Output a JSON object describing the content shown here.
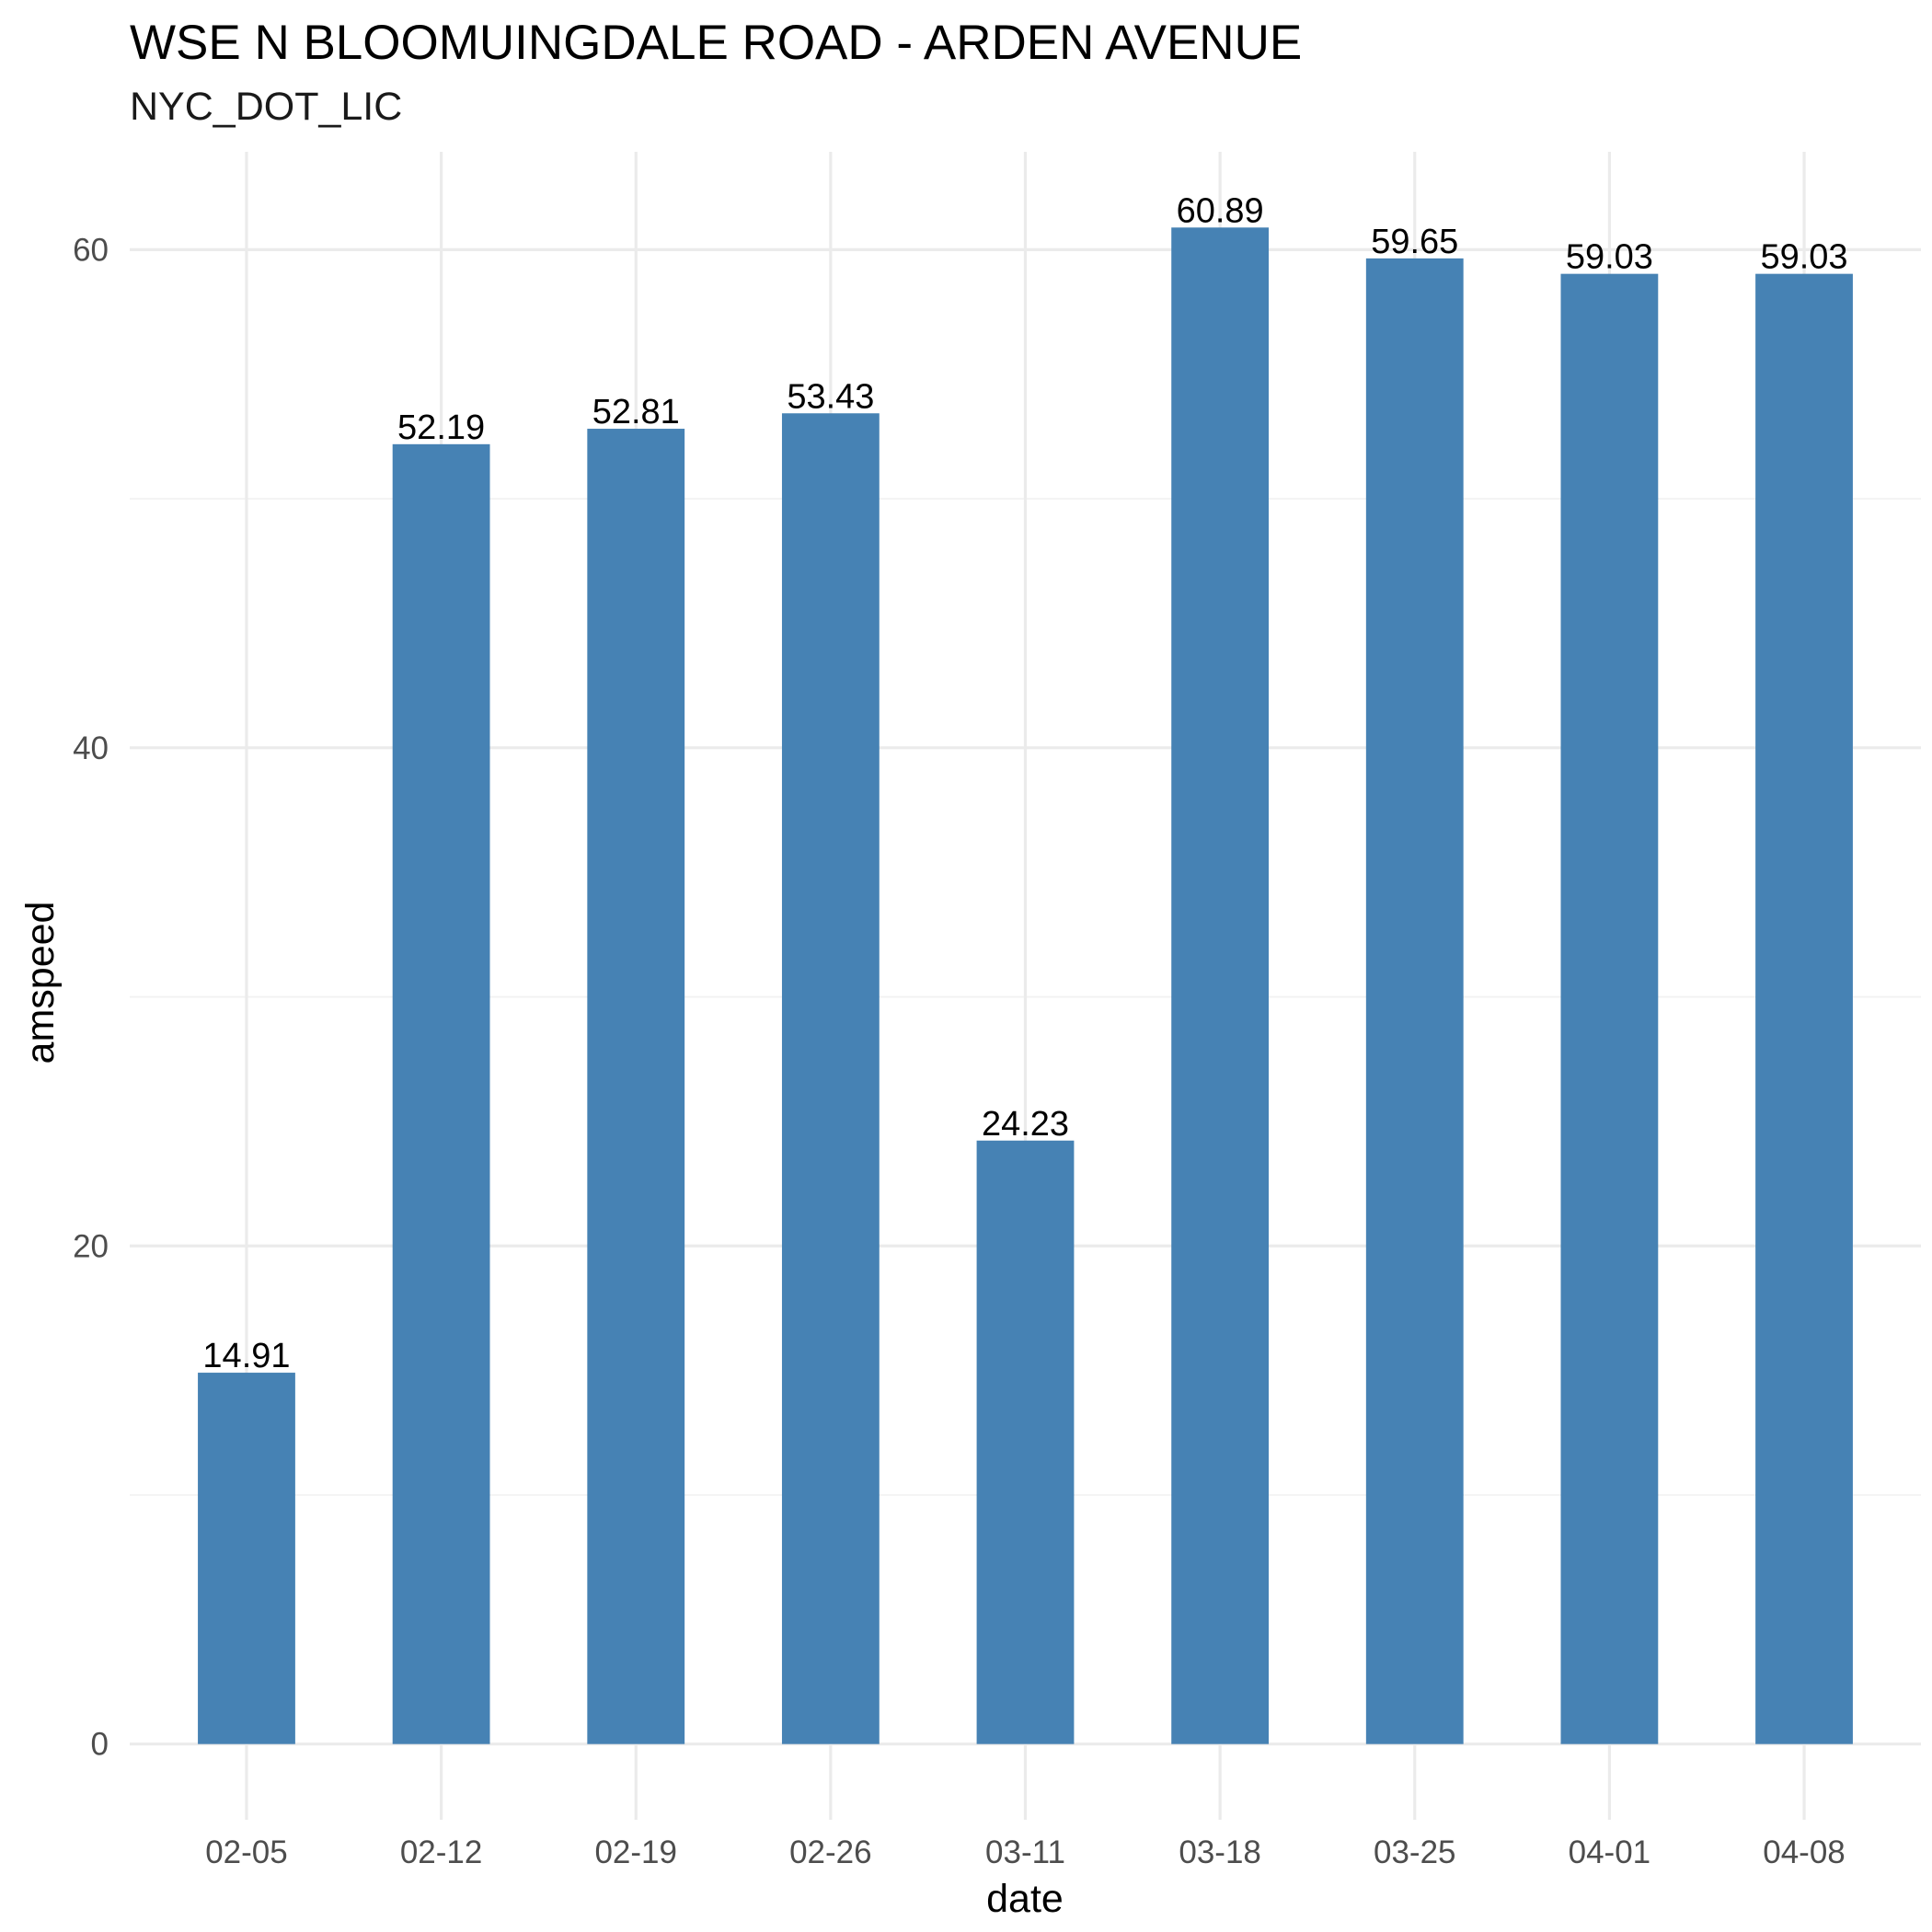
{
  "chart_data": {
    "type": "bar",
    "title": "WSE N BLOOMUINGDALE ROAD - ARDEN AVENUE",
    "subtitle": "NYC_DOT_LIC",
    "xlabel": "date",
    "ylabel": "amspeed",
    "categories": [
      "02-05",
      "02-12",
      "02-19",
      "02-26",
      "03-11",
      "03-18",
      "03-25",
      "04-01",
      "04-08"
    ],
    "values": [
      14.91,
      52.19,
      52.81,
      53.43,
      24.23,
      60.89,
      59.65,
      59.03,
      59.03
    ],
    "value_labels": [
      "14.91",
      "52.19",
      "52.81",
      "53.43",
      "24.23",
      "60.89",
      "59.65",
      "59.03",
      "59.03"
    ],
    "ylim": [
      -3.04,
      63.93
    ],
    "y_ticks": [
      0,
      20,
      40,
      60
    ],
    "y_tick_labels": [
      "0",
      "20",
      "40",
      "60"
    ],
    "y_minor_ticks": [
      10,
      30,
      50
    ],
    "grid": true,
    "legend": "none",
    "bar_color": "#4682B4"
  }
}
